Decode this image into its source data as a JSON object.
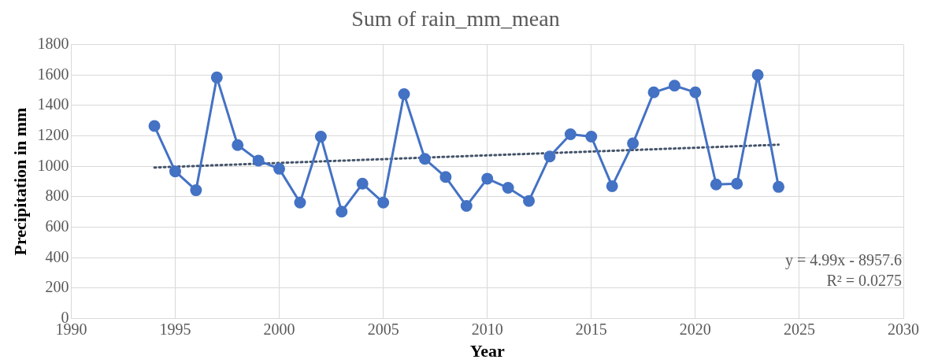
{
  "chart_data": {
    "type": "line",
    "title": "Sum of rain_mm_mean",
    "xlabel": "Year",
    "ylabel": "Precipitation in mm",
    "x": [
      1994,
      1995,
      1996,
      1997,
      1998,
      1999,
      2000,
      2001,
      2002,
      2003,
      2004,
      2005,
      2006,
      2007,
      2008,
      2009,
      2010,
      2011,
      2012,
      2013,
      2014,
      2015,
      2016,
      2017,
      2018,
      2019,
      2020,
      2021,
      2022,
      2023,
      2024
    ],
    "series": [
      {
        "color": "#4472c4",
        "marker": "circle",
        "line_style": "solid",
        "values": [
          1265,
          967,
          843,
          1584,
          1140,
          1038,
          984,
          762,
          1195,
          703,
          886,
          762,
          1475,
          1049,
          930,
          740,
          919,
          859,
          773,
          1065,
          1211,
          1195,
          870,
          1151,
          1486,
          1530,
          1486,
          881,
          886,
          1600,
          865
        ]
      },
      {
        "type": "line",
        "color": "#44546a",
        "marker": "none",
        "line_style": "dotted",
        "x": [
          1994,
          2024
        ],
        "values": [
          992.5,
          1142.2
        ]
      }
    ],
    "xlim": [
      1990,
      2030
    ],
    "xticks": [
      1990,
      1995,
      2000,
      2005,
      2010,
      2015,
      2020,
      2025,
      2030
    ],
    "ylim": [
      0,
      1800
    ],
    "yticks": [
      0,
      200,
      400,
      600,
      800,
      1000,
      1200,
      1400,
      1600,
      1800
    ],
    "grid": true,
    "legend": false,
    "annotations": [
      "y = 4.99x - 8957.6",
      "R² = 0.0275"
    ]
  }
}
